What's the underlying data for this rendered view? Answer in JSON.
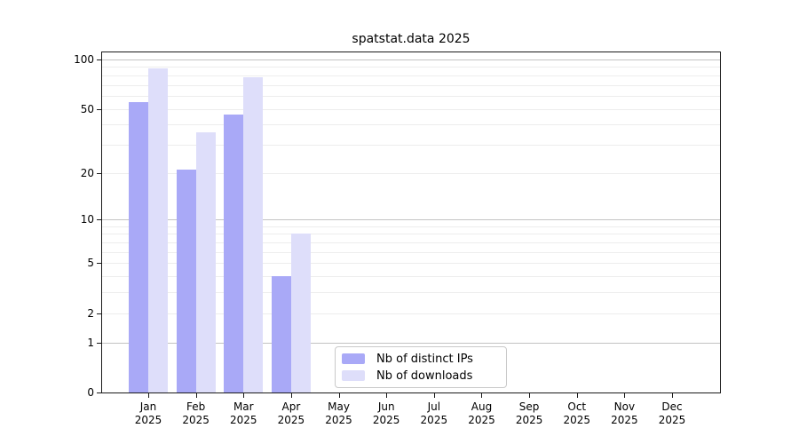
{
  "chart_data": {
    "type": "bar",
    "title": "spatstat.data 2025",
    "year": "2025",
    "months": [
      "Jan",
      "Feb",
      "Mar",
      "Apr",
      "May",
      "Jun",
      "Jul",
      "Aug",
      "Sep",
      "Oct",
      "Nov",
      "Dec"
    ],
    "series": [
      {
        "name": "Nb of distinct IPs",
        "color": "#a9a9f7",
        "values": [
          55,
          21,
          46,
          4,
          null,
          null,
          null,
          null,
          null,
          null,
          null,
          null
        ]
      },
      {
        "name": "Nb of downloads",
        "color": "#dedefa",
        "values": [
          88,
          36,
          78,
          8,
          null,
          null,
          null,
          null,
          null,
          null,
          null,
          null
        ]
      }
    ],
    "yticks": [
      0,
      1,
      2,
      5,
      10,
      20,
      50,
      100
    ],
    "ylim": [
      0,
      100
    ],
    "yscale": "log1p",
    "grid": "horizontal",
    "legend_position": "inside-bottom-center"
  },
  "colors": {
    "background": "#ffffff",
    "axis": "#1a1a1a",
    "major_grid": "#c3c3c3",
    "minor_grid": "#ededed",
    "text": "#000000",
    "legend_border": "#c9c9c9"
  }
}
